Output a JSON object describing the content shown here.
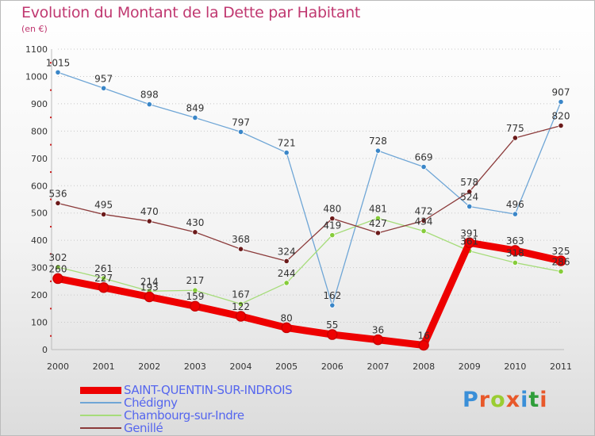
{
  "header": {
    "title": "Evolution du Montant de la Dette par Habitant",
    "subtitle": "(en €)"
  },
  "logo": {
    "text": "Proxiti",
    "colors": [
      "#3a8fd8",
      "#e8582a",
      "#9acd32",
      "#e8582a",
      "#3a8fd8",
      "#2f9e3a",
      "#e8582a"
    ]
  },
  "chart_data": {
    "type": "line",
    "title": "Evolution du Montant de la Dette par Habitant",
    "subtitle": "(en €)",
    "xlabel": "",
    "ylabel": "",
    "x": [
      "2000",
      "2001",
      "2002",
      "2003",
      "2004",
      "2005",
      "2006",
      "2007",
      "2008",
      "2009",
      "2010",
      "2011"
    ],
    "ylim": [
      0,
      1100
    ],
    "yticks": [
      0,
      100,
      200,
      300,
      400,
      500,
      600,
      700,
      800,
      900,
      1000,
      1100
    ],
    "grid": "horizontal dotted",
    "legend_position": "bottom-left",
    "series": [
      {
        "name": "SAINT-QUENTIN-SUR-INDROIS",
        "color": "#ee0000",
        "marker_color": "#ee0000",
        "thick": true,
        "values": [
          260,
          227,
          193,
          159,
          122,
          80,
          55,
          36,
          16,
          391,
          363,
          325
        ],
        "labels": [
          "260",
          "227",
          "193",
          "159",
          "122",
          "80",
          "55",
          "36",
          "16",
          "391",
          "363",
          "325"
        ]
      },
      {
        "name": "Chédigny",
        "color": "#6fa6d6",
        "marker_color": "#3a86c8",
        "thick": false,
        "values": [
          1015,
          957,
          898,
          849,
          797,
          721,
          162,
          728,
          669,
          524,
          496,
          907
        ],
        "labels": [
          "1015",
          "957",
          "898",
          "849",
          "797",
          "721",
          "162",
          "728",
          "669",
          "524",
          "496",
          "907"
        ]
      },
      {
        "name": "Chambourg-sur-Indre",
        "color": "#a6dc7a",
        "marker_color": "#86cc3a",
        "thick": false,
        "values": [
          302,
          261,
          214,
          217,
          167,
          244,
          419,
          481,
          434,
          361,
          318,
          286
        ],
        "labels": [
          "302",
          "261",
          "214",
          "217",
          "167",
          "244",
          "419",
          "481",
          "434",
          "361",
          "318",
          "286"
        ]
      },
      {
        "name": "Genillé",
        "color": "#8b3a3a",
        "marker_color": "#6b1a1a",
        "thick": false,
        "values": [
          536,
          495,
          470,
          430,
          368,
          324,
          480,
          427,
          472,
          578,
          775,
          820
        ],
        "labels": [
          "536",
          "495",
          "470",
          "430",
          "368",
          "324",
          "480",
          "427",
          "472",
          "578",
          "775",
          "820"
        ]
      }
    ]
  }
}
